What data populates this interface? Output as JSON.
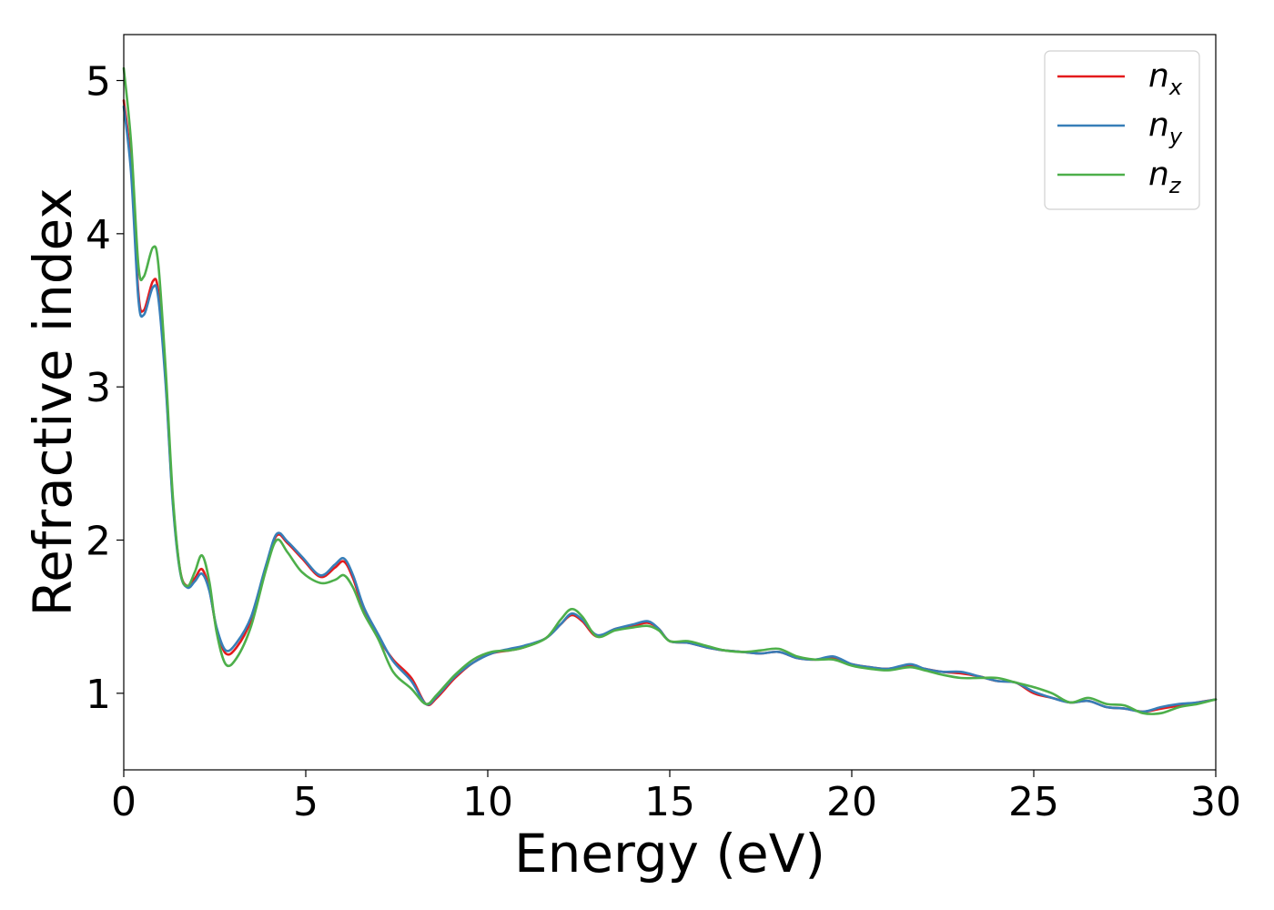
{
  "chart_data": {
    "type": "line",
    "xlabel": "Energy (eV)",
    "ylabel": "Refractive index",
    "xlim": [
      0,
      30
    ],
    "ylim": [
      0.5,
      5.3
    ],
    "x_ticks": [
      0,
      5,
      10,
      15,
      20,
      25,
      30
    ],
    "y_ticks": [
      1,
      2,
      3,
      4,
      5
    ],
    "grid": false,
    "legend_position": "top-right",
    "series": [
      {
        "name": "n",
        "subscript": "x",
        "color": "#e41a1c",
        "points": [
          [
            0,
            4.87
          ],
          [
            0.2,
            4.45
          ],
          [
            0.4,
            3.62
          ],
          [
            0.55,
            3.5
          ],
          [
            0.8,
            3.69
          ],
          [
            0.95,
            3.62
          ],
          [
            1.15,
            3.05
          ],
          [
            1.35,
            2.25
          ],
          [
            1.55,
            1.8
          ],
          [
            1.75,
            1.7
          ],
          [
            1.95,
            1.75
          ],
          [
            2.15,
            1.81
          ],
          [
            2.35,
            1.68
          ],
          [
            2.55,
            1.42
          ],
          [
            2.8,
            1.26
          ],
          [
            3.1,
            1.3
          ],
          [
            3.5,
            1.48
          ],
          [
            3.9,
            1.82
          ],
          [
            4.2,
            2.03
          ],
          [
            4.5,
            1.98
          ],
          [
            4.9,
            1.88
          ],
          [
            5.4,
            1.76
          ],
          [
            5.8,
            1.82
          ],
          [
            6.05,
            1.86
          ],
          [
            6.3,
            1.75
          ],
          [
            6.6,
            1.54
          ],
          [
            7.0,
            1.36
          ],
          [
            7.4,
            1.22
          ],
          [
            7.9,
            1.1
          ],
          [
            8.3,
            0.93
          ],
          [
            8.6,
            0.97
          ],
          [
            9.1,
            1.1
          ],
          [
            9.6,
            1.2
          ],
          [
            10.1,
            1.26
          ],
          [
            10.6,
            1.28
          ],
          [
            11.0,
            1.3
          ],
          [
            11.6,
            1.36
          ],
          [
            12.0,
            1.45
          ],
          [
            12.3,
            1.51
          ],
          [
            12.6,
            1.47
          ],
          [
            13.0,
            1.37
          ],
          [
            13.5,
            1.42
          ],
          [
            14.0,
            1.44
          ],
          [
            14.4,
            1.46
          ],
          [
            14.7,
            1.42
          ],
          [
            15.0,
            1.34
          ],
          [
            15.5,
            1.33
          ],
          [
            16.0,
            1.3
          ],
          [
            16.5,
            1.28
          ],
          [
            17.0,
            1.27
          ],
          [
            17.5,
            1.26
          ],
          [
            18.0,
            1.27
          ],
          [
            18.5,
            1.23
          ],
          [
            19.0,
            1.22
          ],
          [
            19.5,
            1.23
          ],
          [
            20.0,
            1.19
          ],
          [
            20.5,
            1.17
          ],
          [
            21.0,
            1.16
          ],
          [
            21.6,
            1.18
          ],
          [
            22.0,
            1.16
          ],
          [
            22.5,
            1.14
          ],
          [
            23.0,
            1.13
          ],
          [
            23.5,
            1.11
          ],
          [
            24.0,
            1.08
          ],
          [
            24.5,
            1.07
          ],
          [
            25.0,
            1.0
          ],
          [
            25.5,
            0.97
          ],
          [
            26.0,
            0.94
          ],
          [
            26.5,
            0.95
          ],
          [
            27.0,
            0.91
          ],
          [
            27.5,
            0.9
          ],
          [
            28.0,
            0.88
          ],
          [
            28.5,
            0.9
          ],
          [
            29.0,
            0.92
          ],
          [
            29.5,
            0.94
          ],
          [
            30.0,
            0.96
          ]
        ]
      },
      {
        "name": "n",
        "subscript": "y",
        "color": "#377eb8",
        "points": [
          [
            0,
            4.83
          ],
          [
            0.2,
            4.4
          ],
          [
            0.4,
            3.58
          ],
          [
            0.55,
            3.47
          ],
          [
            0.8,
            3.65
          ],
          [
            0.95,
            3.58
          ],
          [
            1.15,
            3.02
          ],
          [
            1.35,
            2.23
          ],
          [
            1.55,
            1.79
          ],
          [
            1.75,
            1.69
          ],
          [
            1.95,
            1.73
          ],
          [
            2.15,
            1.78
          ],
          [
            2.35,
            1.67
          ],
          [
            2.55,
            1.43
          ],
          [
            2.8,
            1.28
          ],
          [
            3.1,
            1.33
          ],
          [
            3.5,
            1.5
          ],
          [
            3.9,
            1.83
          ],
          [
            4.2,
            2.04
          ],
          [
            4.5,
            1.99
          ],
          [
            4.9,
            1.89
          ],
          [
            5.4,
            1.77
          ],
          [
            5.8,
            1.84
          ],
          [
            6.05,
            1.88
          ],
          [
            6.3,
            1.77
          ],
          [
            6.6,
            1.56
          ],
          [
            7.0,
            1.38
          ],
          [
            7.4,
            1.21
          ],
          [
            7.9,
            1.08
          ],
          [
            8.3,
            0.93
          ],
          [
            8.6,
            0.98
          ],
          [
            9.1,
            1.11
          ],
          [
            9.6,
            1.2
          ],
          [
            10.1,
            1.26
          ],
          [
            10.6,
            1.29
          ],
          [
            11.0,
            1.31
          ],
          [
            11.6,
            1.36
          ],
          [
            12.0,
            1.45
          ],
          [
            12.3,
            1.52
          ],
          [
            12.6,
            1.48
          ],
          [
            13.0,
            1.38
          ],
          [
            13.5,
            1.42
          ],
          [
            14.0,
            1.45
          ],
          [
            14.4,
            1.47
          ],
          [
            14.7,
            1.42
          ],
          [
            15.0,
            1.34
          ],
          [
            15.5,
            1.33
          ],
          [
            16.0,
            1.3
          ],
          [
            16.5,
            1.28
          ],
          [
            17.0,
            1.27
          ],
          [
            17.5,
            1.26
          ],
          [
            18.0,
            1.27
          ],
          [
            18.5,
            1.23
          ],
          [
            19.0,
            1.22
          ],
          [
            19.5,
            1.24
          ],
          [
            20.0,
            1.19
          ],
          [
            20.5,
            1.17
          ],
          [
            21.0,
            1.16
          ],
          [
            21.6,
            1.19
          ],
          [
            22.0,
            1.16
          ],
          [
            22.5,
            1.14
          ],
          [
            23.0,
            1.14
          ],
          [
            23.5,
            1.11
          ],
          [
            24.0,
            1.08
          ],
          [
            24.5,
            1.07
          ],
          [
            25.0,
            1.01
          ],
          [
            25.5,
            0.97
          ],
          [
            26.0,
            0.94
          ],
          [
            26.5,
            0.95
          ],
          [
            27.0,
            0.91
          ],
          [
            27.5,
            0.9
          ],
          [
            28.0,
            0.88
          ],
          [
            28.5,
            0.91
          ],
          [
            29.0,
            0.93
          ],
          [
            29.5,
            0.94
          ],
          [
            30.0,
            0.96
          ]
        ]
      },
      {
        "name": "n",
        "subscript": "z",
        "color": "#4daf4a",
        "points": [
          [
            0,
            5.08
          ],
          [
            0.2,
            4.6
          ],
          [
            0.4,
            3.8
          ],
          [
            0.55,
            3.72
          ],
          [
            0.8,
            3.91
          ],
          [
            0.95,
            3.8
          ],
          [
            1.15,
            3.12
          ],
          [
            1.35,
            2.28
          ],
          [
            1.55,
            1.8
          ],
          [
            1.75,
            1.7
          ],
          [
            1.95,
            1.79
          ],
          [
            2.15,
            1.9
          ],
          [
            2.35,
            1.73
          ],
          [
            2.55,
            1.4
          ],
          [
            2.8,
            1.19
          ],
          [
            3.1,
            1.23
          ],
          [
            3.5,
            1.44
          ],
          [
            3.9,
            1.8
          ],
          [
            4.2,
            2.0
          ],
          [
            4.5,
            1.92
          ],
          [
            4.9,
            1.79
          ],
          [
            5.4,
            1.72
          ],
          [
            5.8,
            1.74
          ],
          [
            6.05,
            1.77
          ],
          [
            6.3,
            1.69
          ],
          [
            6.6,
            1.52
          ],
          [
            7.0,
            1.35
          ],
          [
            7.4,
            1.14
          ],
          [
            7.9,
            1.03
          ],
          [
            8.3,
            0.93
          ],
          [
            8.6,
            0.99
          ],
          [
            9.1,
            1.12
          ],
          [
            9.6,
            1.22
          ],
          [
            10.1,
            1.27
          ],
          [
            10.6,
            1.28
          ],
          [
            11.0,
            1.3
          ],
          [
            11.6,
            1.36
          ],
          [
            12.0,
            1.48
          ],
          [
            12.3,
            1.55
          ],
          [
            12.6,
            1.5
          ],
          [
            13.0,
            1.37
          ],
          [
            13.5,
            1.41
          ],
          [
            14.0,
            1.43
          ],
          [
            14.4,
            1.44
          ],
          [
            14.7,
            1.41
          ],
          [
            15.0,
            1.34
          ],
          [
            15.5,
            1.34
          ],
          [
            16.0,
            1.31
          ],
          [
            16.5,
            1.28
          ],
          [
            17.0,
            1.27
          ],
          [
            17.5,
            1.28
          ],
          [
            18.0,
            1.29
          ],
          [
            18.5,
            1.24
          ],
          [
            19.0,
            1.22
          ],
          [
            19.5,
            1.22
          ],
          [
            20.0,
            1.18
          ],
          [
            20.5,
            1.16
          ],
          [
            21.0,
            1.15
          ],
          [
            21.6,
            1.17
          ],
          [
            22.0,
            1.15
          ],
          [
            22.5,
            1.12
          ],
          [
            23.0,
            1.1
          ],
          [
            23.5,
            1.1
          ],
          [
            24.0,
            1.1
          ],
          [
            24.5,
            1.07
          ],
          [
            25.0,
            1.04
          ],
          [
            25.5,
            1.0
          ],
          [
            26.0,
            0.94
          ],
          [
            26.5,
            0.97
          ],
          [
            27.0,
            0.93
          ],
          [
            27.5,
            0.92
          ],
          [
            28.0,
            0.87
          ],
          [
            28.5,
            0.87
          ],
          [
            29.0,
            0.91
          ],
          [
            29.5,
            0.93
          ],
          [
            30.0,
            0.96
          ]
        ]
      }
    ]
  }
}
